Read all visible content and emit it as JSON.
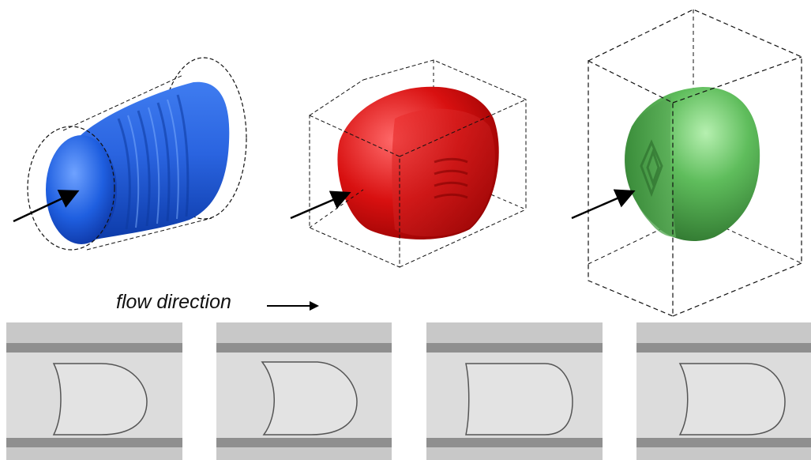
{
  "caption": {
    "flow_label": "flow direction"
  },
  "colors": {
    "cylinder": "#1f5fe0",
    "cube": "#d01010",
    "box": "#3f9e3f",
    "outline": "#111111",
    "channel": "#d8d8d8",
    "channel_wall": "#9a9a9a",
    "arrow": "#000000"
  },
  "panels": [
    {
      "name": "cylinder-panel",
      "shape": "cylinder",
      "color": "blue"
    },
    {
      "name": "cube-panel",
      "shape": "cube",
      "color": "red"
    },
    {
      "name": "tall-box-panel",
      "shape": "rectangular box",
      "color": "green"
    }
  ],
  "micrographs": [
    {
      "name": "micrograph-1"
    },
    {
      "name": "micrograph-2"
    },
    {
      "name": "micrograph-3"
    },
    {
      "name": "micrograph-4"
    }
  ]
}
